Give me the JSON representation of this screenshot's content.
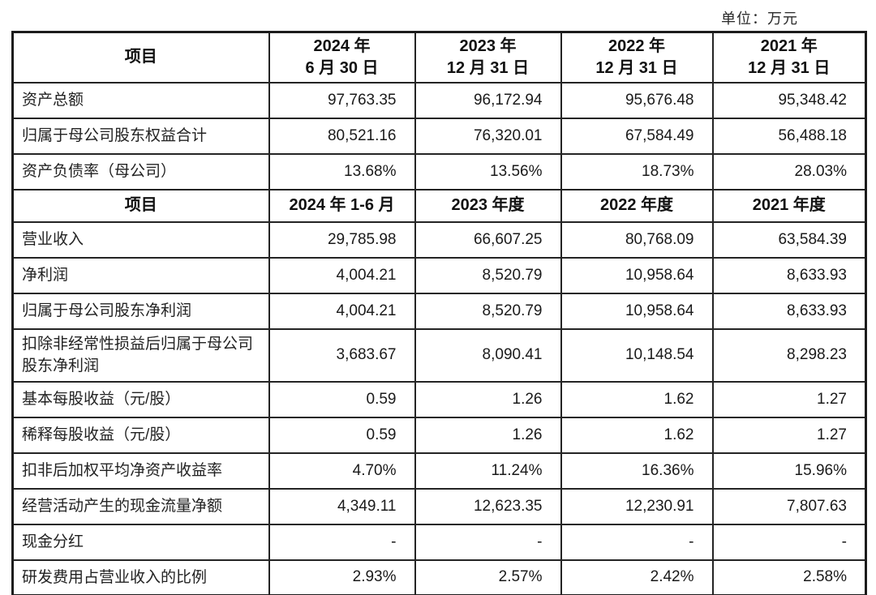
{
  "unit_label": "单位：万元",
  "sections": [
    {
      "header": {
        "item_label": "项目",
        "columns": [
          {
            "line1": "2024 年",
            "line2": "6 月 30 日"
          },
          {
            "line1": "2023 年",
            "line2": "12 月 31 日"
          },
          {
            "line1": "2022 年",
            "line2": "12 月 31 日"
          },
          {
            "line1": "2021 年",
            "line2": "12 月 31 日"
          }
        ]
      },
      "rows": [
        {
          "label": "资产总额",
          "values": [
            "97,763.35",
            "96,172.94",
            "95,676.48",
            "95,348.42"
          ]
        },
        {
          "label": "归属于母公司股东权益合计",
          "values": [
            "80,521.16",
            "76,320.01",
            "67,584.49",
            "56,488.18"
          ]
        },
        {
          "label": "资产负债率（母公司）",
          "values": [
            "13.68%",
            "13.56%",
            "18.73%",
            "28.03%"
          ]
        }
      ]
    },
    {
      "header": {
        "item_label": "项目",
        "columns": [
          "2024 年 1-6 月",
          "2023 年度",
          "2022 年度",
          "2021 年度"
        ]
      },
      "rows": [
        {
          "label": "营业收入",
          "values": [
            "29,785.98",
            "66,607.25",
            "80,768.09",
            "63,584.39"
          ]
        },
        {
          "label": "净利润",
          "values": [
            "4,004.21",
            "8,520.79",
            "10,958.64",
            "8,633.93"
          ]
        },
        {
          "label": "归属于母公司股东净利润",
          "values": [
            "4,004.21",
            "8,520.79",
            "10,958.64",
            "8,633.93"
          ]
        },
        {
          "label": "扣除非经常性损益后归属于母公司股东净利润",
          "values": [
            "3,683.67",
            "8,090.41",
            "10,148.54",
            "8,298.23"
          ]
        },
        {
          "label": "基本每股收益（元/股）",
          "values": [
            "0.59",
            "1.26",
            "1.62",
            "1.27"
          ]
        },
        {
          "label": "稀释每股收益（元/股）",
          "values": [
            "0.59",
            "1.26",
            "1.62",
            "1.27"
          ]
        },
        {
          "label": "扣非后加权平均净资产收益率",
          "values": [
            "4.70%",
            "11.24%",
            "16.36%",
            "15.96%"
          ]
        },
        {
          "label": "经营活动产生的现金流量净额",
          "values": [
            "4,349.11",
            "12,623.35",
            "12,230.91",
            "7,807.63"
          ]
        },
        {
          "label": "现金分红",
          "values": [
            "-",
            "-",
            "-",
            "-"
          ]
        },
        {
          "label": "研发费用占营业收入的比例",
          "values": [
            "2.93%",
            "2.57%",
            "2.42%",
            "2.58%"
          ]
        }
      ]
    }
  ]
}
